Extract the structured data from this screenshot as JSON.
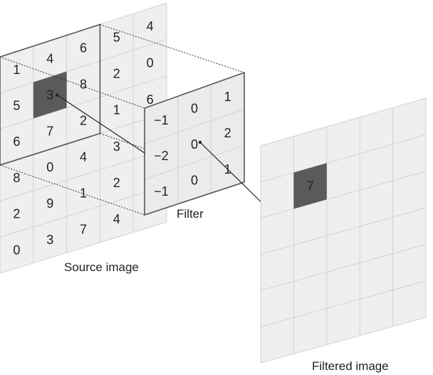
{
  "colors": {
    "background": "#ffffff",
    "cell_fill": "#efefef",
    "highlight_fill": "#5a5a5a",
    "filter_fill": "#ebebeb"
  },
  "source_image": {
    "label": "Source image",
    "values": [
      [
        "1",
        "4",
        "6",
        "5",
        "4"
      ],
      [
        "5",
        "3",
        "8",
        "2",
        "0"
      ],
      [
        "6",
        "7",
        "2",
        "1",
        "6"
      ],
      [
        "8",
        "0",
        "4",
        "3",
        ""
      ],
      [
        "2",
        "9",
        "1",
        "2",
        ""
      ],
      [
        "0",
        "3",
        "7",
        "4",
        ""
      ]
    ],
    "highlight_value": "3"
  },
  "filter": {
    "label": "Filter",
    "values": [
      [
        "−1",
        "0",
        "1"
      ],
      [
        "−2",
        "0",
        "2"
      ],
      [
        "−1",
        "0",
        "1"
      ]
    ]
  },
  "filtered_image": {
    "label": "Filtered image",
    "result_value": "7"
  }
}
